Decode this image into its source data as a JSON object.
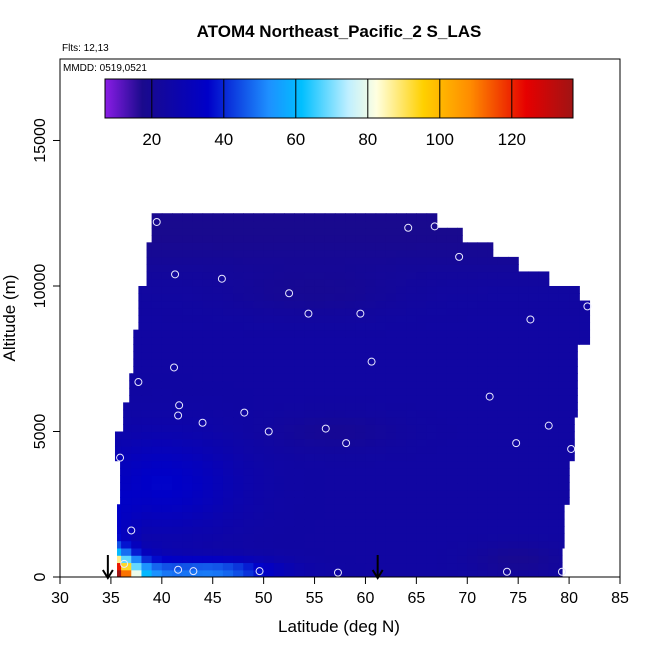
{
  "chart_data": {
    "type": "heatmap",
    "title": "ATOM4 Northeast_Pacific_2 S_LAS",
    "note_flights": "Flts: 12,13",
    "note_dates": "MMDD: 0519,0521",
    "xlabel": "Latitude (deg N)",
    "ylabel": "Altitude (m)",
    "xlim": [
      30,
      85
    ],
    "ylim": [
      0,
      17800
    ],
    "x_ticks": [
      30,
      35,
      40,
      45,
      50,
      55,
      60,
      65,
      70,
      75,
      80,
      85
    ],
    "y_ticks": [
      0,
      5000,
      10000,
      15000
    ],
    "colorbar": {
      "range": [
        7,
        137
      ],
      "ticks": [
        20,
        40,
        60,
        80,
        100,
        120
      ],
      "colors": [
        "#8a1de6",
        "#1a0a8c",
        "#0000c8",
        "#1e90ff",
        "#00bfff",
        "#bfefff",
        "#ffffe0",
        "#ffd000",
        "#ff8c00",
        "#e60000",
        "#a01414"
      ]
    },
    "sample_points": [
      {
        "lat": 39.5,
        "alt": 12200
      },
      {
        "lat": 41.3,
        "alt": 10400
      },
      {
        "lat": 45.9,
        "alt": 10250
      },
      {
        "lat": 64.2,
        "alt": 12000
      },
      {
        "lat": 66.8,
        "alt": 12050
      },
      {
        "lat": 69.2,
        "alt": 11000
      },
      {
        "lat": 52.5,
        "alt": 9750
      },
      {
        "lat": 54.4,
        "alt": 9050
      },
      {
        "lat": 59.5,
        "alt": 9050
      },
      {
        "lat": 76.2,
        "alt": 8850
      },
      {
        "lat": 81.8,
        "alt": 9300
      },
      {
        "lat": 41.2,
        "alt": 7200
      },
      {
        "lat": 60.6,
        "alt": 7400
      },
      {
        "lat": 37.7,
        "alt": 6700
      },
      {
        "lat": 41.7,
        "alt": 5900
      },
      {
        "lat": 48.1,
        "alt": 5650
      },
      {
        "lat": 41.6,
        "alt": 5550
      },
      {
        "lat": 44.0,
        "alt": 5300
      },
      {
        "lat": 50.5,
        "alt": 5000
      },
      {
        "lat": 56.1,
        "alt": 5100
      },
      {
        "lat": 58.1,
        "alt": 4600
      },
      {
        "lat": 72.2,
        "alt": 6200
      },
      {
        "lat": 78.0,
        "alt": 5200
      },
      {
        "lat": 74.8,
        "alt": 4600
      },
      {
        "lat": 80.2,
        "alt": 4400
      },
      {
        "lat": 35.9,
        "alt": 4100
      },
      {
        "lat": 37.0,
        "alt": 1600
      },
      {
        "lat": 36.3,
        "alt": 450
      },
      {
        "lat": 41.6,
        "alt": 250
      },
      {
        "lat": 43.1,
        "alt": 200
      },
      {
        "lat": 49.6,
        "alt": 200
      },
      {
        "lat": 57.3,
        "alt": 150
      },
      {
        "lat": 73.9,
        "alt": 180
      },
      {
        "lat": 79.3,
        "alt": 180
      }
    ],
    "arrows_lat": [
      34.7,
      61.2
    ]
  }
}
